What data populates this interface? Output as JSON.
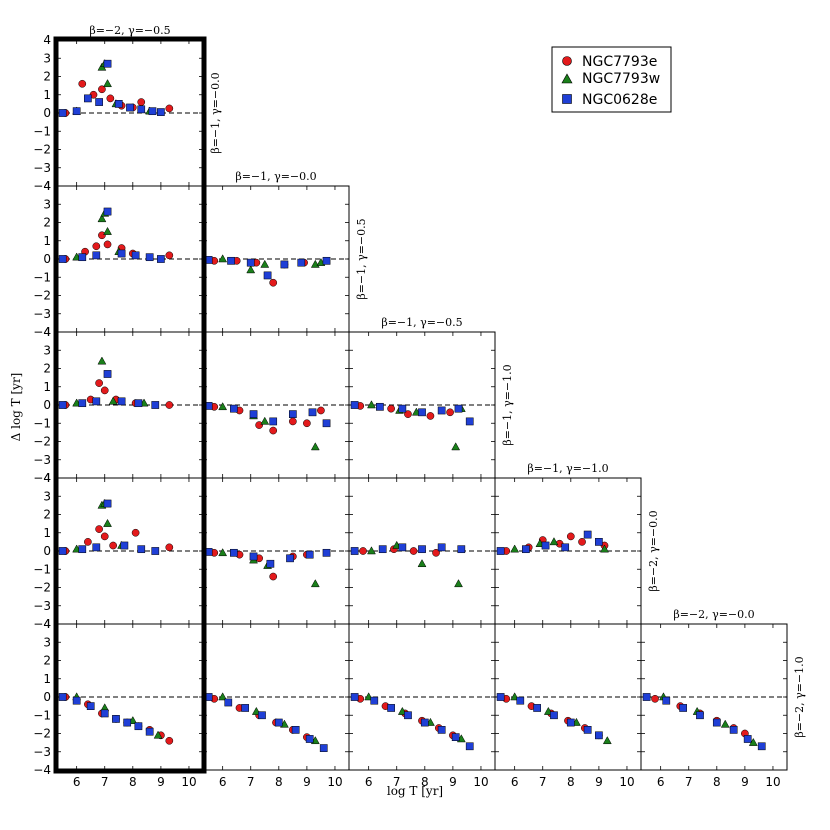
{
  "chart_data": {
    "type": "scatter",
    "layout": "lower-triangular grid of comparison panels (5 rows)",
    "xlabel": "log T [yr]",
    "ylabel": "Δ log T [yr]",
    "xlim": [
      5.3,
      10.5
    ],
    "ylim": [
      -4,
      4
    ],
    "xticks": [
      6,
      7,
      8,
      9,
      10
    ],
    "yticks": [
      -4,
      -3,
      -2,
      -1,
      0,
      1,
      2,
      3,
      4
    ],
    "reference_line": 0,
    "colors": {
      "NGC7793e": "#e31a1c",
      "NGC7793w": "#1a7f1a",
      "NGC0628e": "#1f3fd6"
    },
    "legend": {
      "position": "top-right",
      "entries": [
        {
          "name": "NGC7793e",
          "marker": "circle",
          "color": "#e31a1c"
        },
        {
          "name": "NGC7793w",
          "marker": "triangle",
          "color": "#1a7f1a"
        },
        {
          "name": "NGC0628e",
          "marker": "square",
          "color": "#1f3fd6"
        }
      ]
    },
    "row_labels": [
      "β=−1, γ=−0.0",
      "β=−1, γ=−0.5",
      "β=−1, γ=−1.0",
      "β=−2, γ=−0.0",
      "β=−2, γ=−1.0"
    ],
    "column_titles": [
      "β=−2, γ=−0.5",
      "β=−1, γ=−0.0",
      "β=−1, γ=−0.5",
      "β=−1, γ=−1.0",
      "β=−2, γ=−0.0"
    ],
    "highlighted_column": 0,
    "panels": [
      {
        "row": 0,
        "col": 0,
        "series": [
          {
            "name": "NGC7793e",
            "x": [
              5.6,
              6.2,
              6.6,
              6.9,
              7.2,
              7.6,
              8.0,
              8.3,
              9.3
            ],
            "y": [
              0.0,
              1.6,
              1.0,
              1.3,
              0.8,
              0.4,
              0.3,
              0.6,
              0.25
            ]
          },
          {
            "name": "NGC7793w",
            "x": [
              6.0,
              6.9,
              7.0,
              7.1,
              7.4,
              8.6
            ],
            "y": [
              0.1,
              2.5,
              2.7,
              1.6,
              0.5,
              0.1
            ]
          },
          {
            "name": "NGC0628e",
            "x": [
              5.5,
              6.0,
              6.4,
              6.8,
              7.1,
              7.5,
              7.9,
              8.3,
              8.7,
              9.0
            ],
            "y": [
              0.0,
              0.1,
              0.8,
              0.6,
              2.7,
              0.5,
              0.3,
              0.2,
              0.1,
              0.05
            ]
          }
        ]
      },
      {
        "row": 1,
        "col": 0,
        "series": [
          {
            "name": "NGC7793e",
            "x": [
              5.6,
              6.3,
              6.7,
              6.9,
              7.1,
              7.6,
              8.0,
              9.3
            ],
            "y": [
              0.0,
              0.4,
              0.7,
              1.3,
              0.8,
              0.6,
              0.3,
              0.2
            ]
          },
          {
            "name": "NGC7793w",
            "x": [
              6.0,
              6.9,
              7.0,
              7.1,
              7.5
            ],
            "y": [
              0.1,
              2.2,
              2.5,
              1.5,
              0.4
            ]
          },
          {
            "name": "NGC0628e",
            "x": [
              5.5,
              6.2,
              6.7,
              7.1,
              7.6,
              8.1,
              8.6,
              9.0
            ],
            "y": [
              0.0,
              0.1,
              0.2,
              2.6,
              0.3,
              0.2,
              0.1,
              0.0
            ]
          }
        ]
      },
      {
        "row": 1,
        "col": 1,
        "series": [
          {
            "name": "NGC7793e",
            "x": [
              5.7,
              6.5,
              7.2,
              7.8,
              8.2,
              8.9
            ],
            "y": [
              -0.1,
              -0.1,
              -0.2,
              -1.3,
              -0.3,
              -0.2
            ]
          },
          {
            "name": "NGC7793w",
            "x": [
              6.0,
              7.0,
              7.5,
              9.3,
              9.5
            ],
            "y": [
              0.0,
              -0.6,
              -0.3,
              -0.3,
              -0.2
            ]
          },
          {
            "name": "NGC0628e",
            "x": [
              5.5,
              6.3,
              7.0,
              7.6,
              8.2,
              8.8,
              9.7
            ],
            "y": [
              -0.05,
              -0.1,
              -0.2,
              -0.9,
              -0.3,
              -0.2,
              -0.1
            ]
          }
        ]
      },
      {
        "row": 2,
        "col": 0,
        "series": [
          {
            "name": "NGC7793e",
            "x": [
              5.6,
              6.5,
              6.8,
              7.0,
              7.4,
              8.1,
              9.3
            ],
            "y": [
              0.0,
              0.3,
              1.2,
              0.8,
              0.3,
              0.1,
              0.0
            ]
          },
          {
            "name": "NGC7793w",
            "x": [
              6.0,
              6.9,
              7.3,
              8.4
            ],
            "y": [
              0.1,
              2.4,
              0.2,
              0.1
            ]
          },
          {
            "name": "NGC0628e",
            "x": [
              5.5,
              6.2,
              6.7,
              7.1,
              7.6,
              8.2,
              8.8
            ],
            "y": [
              0.0,
              0.1,
              0.2,
              1.7,
              0.2,
              0.1,
              0.0
            ]
          }
        ]
      },
      {
        "row": 2,
        "col": 1,
        "series": [
          {
            "name": "NGC7793e",
            "x": [
              5.7,
              6.6,
              7.3,
              7.8,
              8.5,
              9.0,
              9.5
            ],
            "y": [
              -0.1,
              -0.3,
              -1.1,
              -1.4,
              -0.9,
              -1.0,
              -0.3
            ]
          },
          {
            "name": "NGC7793w",
            "x": [
              6.0,
              7.1,
              7.5,
              9.3
            ],
            "y": [
              -0.1,
              -0.6,
              -0.9,
              -2.3
            ]
          },
          {
            "name": "NGC0628e",
            "x": [
              5.5,
              6.4,
              7.1,
              7.8,
              8.5,
              9.2,
              9.7
            ],
            "y": [
              -0.05,
              -0.2,
              -0.5,
              -0.9,
              -0.5,
              -0.4,
              -1.0
            ]
          }
        ]
      },
      {
        "row": 2,
        "col": 2,
        "series": [
          {
            "name": "NGC7793e",
            "x": [
              5.7,
              6.8,
              7.4,
              8.2,
              8.9
            ],
            "y": [
              -0.05,
              -0.2,
              -0.5,
              -0.6,
              -0.4
            ]
          },
          {
            "name": "NGC7793w",
            "x": [
              6.1,
              7.1,
              7.7,
              9.1,
              9.3
            ],
            "y": [
              0.0,
              -0.3,
              -0.4,
              -2.3,
              -0.2
            ]
          },
          {
            "name": "NGC0628e",
            "x": [
              5.5,
              6.4,
              7.2,
              7.9,
              8.6,
              9.2,
              9.6
            ],
            "y": [
              0.0,
              -0.1,
              -0.2,
              -0.4,
              -0.3,
              -0.2,
              -0.9
            ]
          }
        ]
      },
      {
        "row": 3,
        "col": 0,
        "series": [
          {
            "name": "NGC7793e",
            "x": [
              5.6,
              6.4,
              6.8,
              7.0,
              7.3,
              8.1,
              9.3
            ],
            "y": [
              0.0,
              0.5,
              1.2,
              0.8,
              0.3,
              1.0,
              0.2
            ]
          },
          {
            "name": "NGC7793w",
            "x": [
              6.0,
              6.9,
              7.0,
              7.1,
              7.6
            ],
            "y": [
              0.1,
              2.5,
              2.6,
              1.5,
              0.3
            ]
          },
          {
            "name": "NGC0628e",
            "x": [
              5.5,
              6.2,
              6.7,
              7.1,
              7.7,
              8.3,
              8.8
            ],
            "y": [
              0.0,
              0.1,
              0.2,
              2.6,
              0.3,
              0.1,
              0.0
            ]
          }
        ]
      },
      {
        "row": 3,
        "col": 1,
        "series": [
          {
            "name": "NGC7793e",
            "x": [
              5.7,
              6.6,
              7.3,
              7.8,
              8.5,
              9.0
            ],
            "y": [
              -0.1,
              -0.2,
              -0.4,
              -1.4,
              -0.3,
              -0.2
            ]
          },
          {
            "name": "NGC7793w",
            "x": [
              6.0,
              7.1,
              7.6,
              9.3
            ],
            "y": [
              -0.1,
              -0.5,
              -0.8,
              -1.8
            ]
          },
          {
            "name": "NGC0628e",
            "x": [
              5.5,
              6.4,
              7.1,
              7.7,
              8.4,
              9.1,
              9.7
            ],
            "y": [
              -0.05,
              -0.1,
              -0.3,
              -0.7,
              -0.4,
              -0.2,
              -0.1
            ]
          }
        ]
      },
      {
        "row": 3,
        "col": 2,
        "series": [
          {
            "name": "NGC7793e",
            "x": [
              5.8,
              6.9,
              7.6,
              8.4
            ],
            "y": [
              0.0,
              0.1,
              0.0,
              -0.1
            ]
          },
          {
            "name": "NGC7793w",
            "x": [
              6.1,
              7.0,
              7.9,
              9.2
            ],
            "y": [
              0.0,
              0.3,
              -0.7,
              -1.8
            ]
          },
          {
            "name": "NGC0628e",
            "x": [
              5.5,
              6.5,
              7.2,
              7.9,
              8.6,
              9.3
            ],
            "y": [
              0.0,
              0.1,
              0.2,
              0.1,
              0.2,
              0.1
            ]
          }
        ]
      },
      {
        "row": 3,
        "col": 3,
        "series": [
          {
            "name": "NGC7793e",
            "x": [
              5.7,
              6.5,
              7.0,
              7.6,
              8.0,
              8.4,
              9.2
            ],
            "y": [
              0.0,
              0.2,
              0.6,
              0.4,
              0.8,
              0.5,
              0.3
            ]
          },
          {
            "name": "NGC7793w",
            "x": [
              6.0,
              6.9,
              7.4,
              9.2
            ],
            "y": [
              0.1,
              0.4,
              0.5,
              0.1
            ]
          },
          {
            "name": "NGC0628e",
            "x": [
              5.5,
              6.4,
              7.1,
              7.8,
              8.6,
              9.0
            ],
            "y": [
              0.0,
              0.1,
              0.3,
              0.2,
              0.9,
              0.5
            ]
          }
        ]
      },
      {
        "row": 4,
        "col": 0,
        "series": [
          {
            "name": "NGC7793e",
            "x": [
              5.6,
              6.4,
              6.9,
              7.4,
              7.8,
              8.2,
              8.6,
              9.0,
              9.3
            ],
            "y": [
              0.0,
              -0.4,
              -0.9,
              -1.2,
              -1.4,
              -1.6,
              -1.8,
              -2.1,
              -2.4
            ]
          },
          {
            "name": "NGC7793w",
            "x": [
              6.0,
              7.0,
              8.0,
              8.9
            ],
            "y": [
              0.0,
              -0.6,
              -1.3,
              -2.1
            ]
          },
          {
            "name": "NGC0628e",
            "x": [
              5.5,
              6.0,
              6.5,
              7.0,
              7.4,
              7.8,
              8.2,
              8.6
            ],
            "y": [
              0.0,
              -0.2,
              -0.5,
              -0.9,
              -1.2,
              -1.4,
              -1.6,
              -1.9
            ]
          }
        ]
      },
      {
        "row": 4,
        "col": 1,
        "series": [
          {
            "name": "NGC7793e",
            "x": [
              5.7,
              6.6,
              7.3,
              7.9,
              8.5,
              9.0
            ],
            "y": [
              -0.1,
              -0.6,
              -1.0,
              -1.4,
              -1.8,
              -2.2
            ]
          },
          {
            "name": "NGC7793w",
            "x": [
              6.0,
              7.2,
              8.2,
              9.3
            ],
            "y": [
              0.0,
              -0.8,
              -1.5,
              -2.4
            ]
          },
          {
            "name": "NGC0628e",
            "x": [
              5.5,
              6.2,
              6.8,
              7.4,
              8.0,
              8.6,
              9.1,
              9.6
            ],
            "y": [
              0.0,
              -0.3,
              -0.6,
              -1.0,
              -1.4,
              -1.8,
              -2.3,
              -2.8
            ]
          }
        ]
      },
      {
        "row": 4,
        "col": 2,
        "series": [
          {
            "name": "NGC7793e",
            "x": [
              5.7,
              6.6,
              7.3,
              7.9,
              8.5,
              9.0
            ],
            "y": [
              -0.1,
              -0.5,
              -0.9,
              -1.3,
              -1.7,
              -2.1
            ]
          },
          {
            "name": "NGC7793w",
            "x": [
              6.0,
              7.2,
              8.2,
              9.3
            ],
            "y": [
              0.0,
              -0.8,
              -1.4,
              -2.3
            ]
          },
          {
            "name": "NGC0628e",
            "x": [
              5.5,
              6.2,
              6.8,
              7.4,
              8.0,
              8.6,
              9.1,
              9.6
            ],
            "y": [
              0.0,
              -0.2,
              -0.6,
              -1.0,
              -1.4,
              -1.8,
              -2.2,
              -2.7
            ]
          }
        ]
      },
      {
        "row": 4,
        "col": 3,
        "series": [
          {
            "name": "NGC7793e",
            "x": [
              5.7,
              6.6,
              7.3,
              7.9,
              8.5,
              9.0
            ],
            "y": [
              -0.1,
              -0.5,
              -0.9,
              -1.3,
              -1.7,
              -2.1
            ]
          },
          {
            "name": "NGC7793w",
            "x": [
              6.0,
              7.2,
              8.2,
              9.3
            ],
            "y": [
              0.0,
              -0.8,
              -1.4,
              -2.4
            ]
          },
          {
            "name": "NGC0628e",
            "x": [
              5.5,
              6.2,
              6.8,
              7.4,
              8.0,
              8.6,
              9.0
            ],
            "y": [
              0.0,
              -0.2,
              -0.6,
              -1.0,
              -1.4,
              -1.8,
              -2.1
            ]
          }
        ]
      },
      {
        "row": 4,
        "col": 4,
        "series": [
          {
            "name": "NGC7793e",
            "x": [
              5.8,
              6.7,
              7.4,
              8.0,
              8.6,
              9.0
            ],
            "y": [
              -0.1,
              -0.5,
              -0.9,
              -1.3,
              -1.7,
              -2.0
            ]
          },
          {
            "name": "NGC7793w",
            "x": [
              6.1,
              7.3,
              8.3,
              9.3
            ],
            "y": [
              0.0,
              -0.8,
              -1.5,
              -2.5
            ]
          },
          {
            "name": "NGC0628e",
            "x": [
              5.5,
              6.2,
              6.8,
              7.4,
              8.0,
              8.6,
              9.1,
              9.6
            ],
            "y": [
              0.0,
              -0.2,
              -0.6,
              -1.0,
              -1.4,
              -1.8,
              -2.3,
              -2.7
            ]
          }
        ]
      }
    ]
  }
}
